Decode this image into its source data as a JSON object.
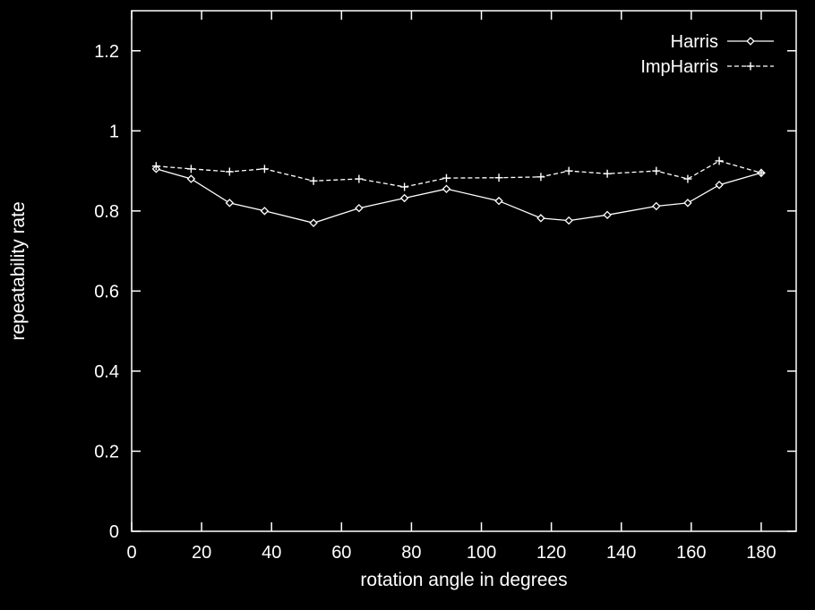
{
  "chart_data": {
    "type": "line",
    "title": "",
    "xlabel": "rotation angle in degrees",
    "ylabel": "repeatability rate",
    "xlim": [
      0,
      190
    ],
    "ylim": [
      0,
      1.3
    ],
    "x_ticks": [
      0,
      20,
      40,
      60,
      80,
      100,
      120,
      140,
      160,
      180
    ],
    "x_tick_labels": [
      "0",
      "20",
      "40",
      "60",
      "80",
      "100",
      "120",
      "140",
      "160",
      "180"
    ],
    "y_ticks": [
      0,
      0.2,
      0.4,
      0.6,
      0.8,
      1.0,
      1.2
    ],
    "y_tick_labels": [
      "0",
      "0.2",
      "0.4",
      "0.6",
      "0.8",
      "1",
      "1.2"
    ],
    "grid": false,
    "legend_position": "top-right",
    "colors": {
      "background": "#000000",
      "foreground": "#ffffff"
    },
    "series": [
      {
        "name": "Harris",
        "line_style": "solid",
        "marker": "diamond",
        "x": [
          7,
          17,
          28,
          38,
          52,
          65,
          78,
          90,
          105,
          117,
          125,
          136,
          150,
          159,
          168,
          180
        ],
        "y": [
          0.905,
          0.88,
          0.82,
          0.8,
          0.77,
          0.807,
          0.832,
          0.855,
          0.825,
          0.782,
          0.776,
          0.79,
          0.812,
          0.82,
          0.865,
          0.895
        ]
      },
      {
        "name": "ImpHarris",
        "line_style": "dashed",
        "marker": "plus",
        "x": [
          7,
          17,
          28,
          38,
          52,
          65,
          78,
          90,
          105,
          117,
          125,
          136,
          150,
          159,
          168,
          180
        ],
        "y": [
          0.912,
          0.905,
          0.898,
          0.905,
          0.875,
          0.88,
          0.86,
          0.882,
          0.883,
          0.885,
          0.9,
          0.893,
          0.9,
          0.88,
          0.925,
          0.895
        ]
      }
    ]
  }
}
